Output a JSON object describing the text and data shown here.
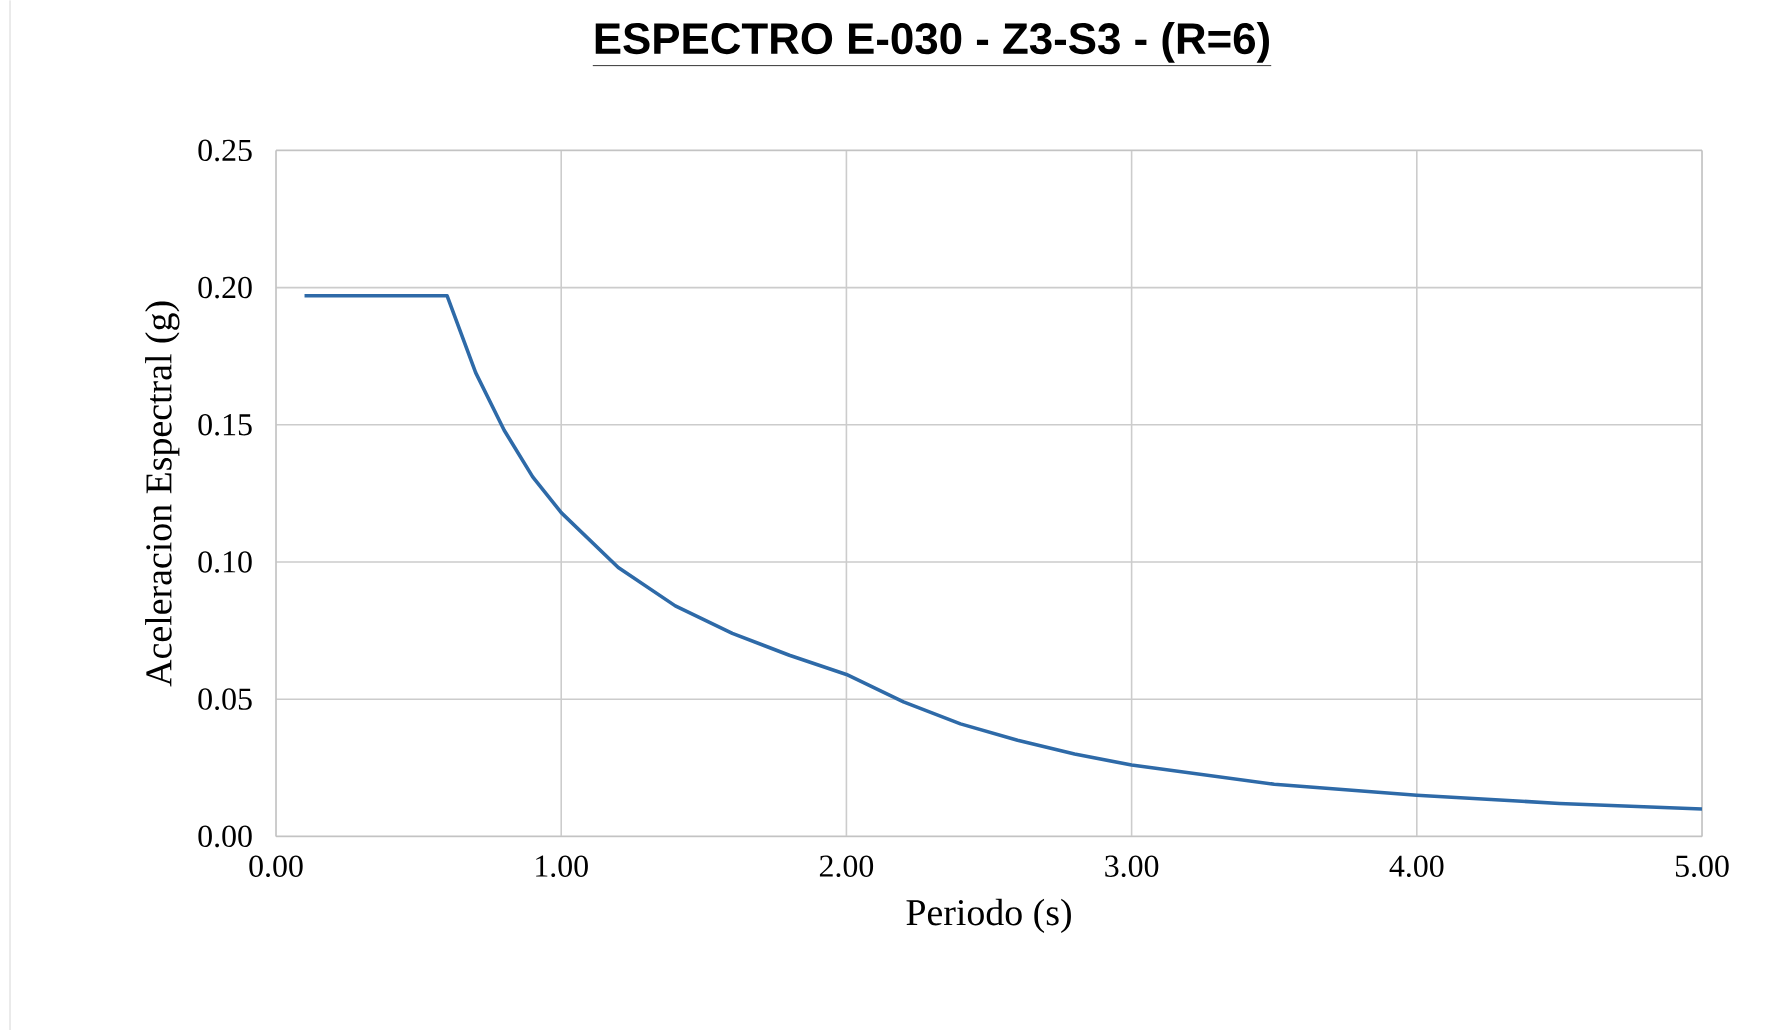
{
  "chart_data": {
    "type": "line",
    "title": "ESPECTRO E-030 - Z3-S3 - (R=6)",
    "xlabel": "Periodo (s)",
    "ylabel": "Aceleracion Espectral (g)",
    "x": [
      0.1,
      0.6,
      0.7,
      0.8,
      0.9,
      1.0,
      1.2,
      1.4,
      1.6,
      1.8,
      2.0,
      2.2,
      2.4,
      2.6,
      2.8,
      3.0,
      3.5,
      4.0,
      4.5,
      5.0
    ],
    "series": [
      {
        "color": "#2e6aa8",
        "values": [
          0.197,
          0.197,
          0.169,
          0.148,
          0.131,
          0.118,
          0.098,
          0.084,
          0.074,
          0.066,
          0.059,
          0.049,
          0.041,
          0.035,
          0.03,
          0.026,
          0.019,
          0.015,
          0.012,
          0.01
        ]
      }
    ],
    "xlim": [
      0,
      5
    ],
    "ylim": [
      0,
      0.25
    ],
    "xticks": [
      {
        "value": 0,
        "label": "0.00"
      },
      {
        "value": 1,
        "label": "1.00"
      },
      {
        "value": 2,
        "label": "2.00"
      },
      {
        "value": 3,
        "label": "3.00"
      },
      {
        "value": 4,
        "label": "4.00"
      },
      {
        "value": 5,
        "label": "5.00"
      }
    ],
    "yticks": [
      {
        "value": 0,
        "label": "0.00"
      },
      {
        "value": 0.05,
        "label": "0.05"
      },
      {
        "value": 0.1,
        "label": "0.10"
      },
      {
        "value": 0.15,
        "label": "0.15"
      },
      {
        "value": 0.2,
        "label": "0.20"
      },
      {
        "value": 0.25,
        "label": "0.25"
      }
    ],
    "grid": true,
    "marker": "none",
    "line_style": "solid"
  }
}
